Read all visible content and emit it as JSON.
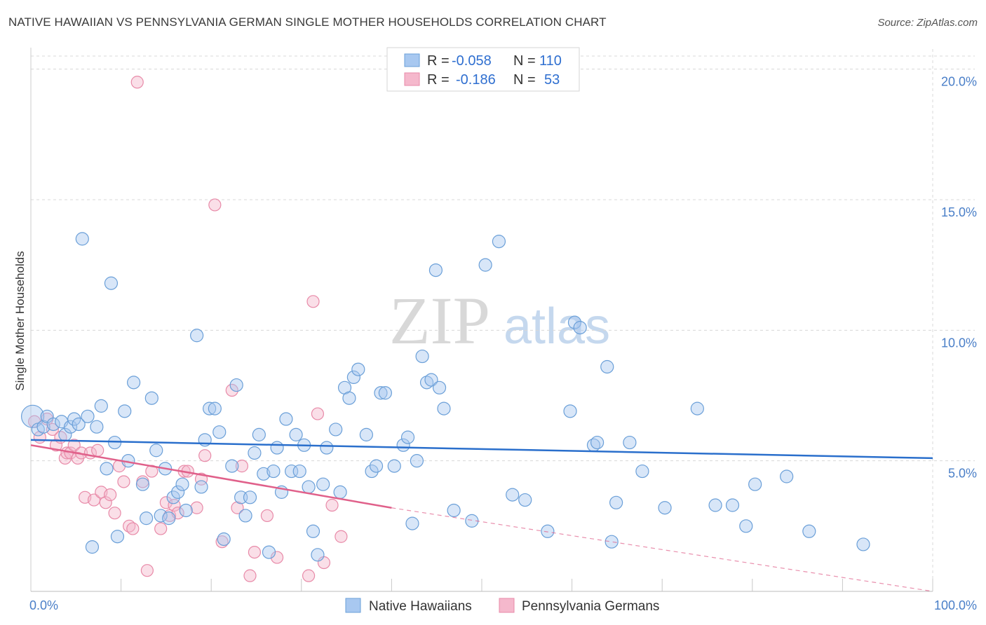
{
  "title": "NATIVE HAWAIIAN VS PENNSYLVANIA GERMAN SINGLE MOTHER HOUSEHOLDS CORRELATION CHART",
  "source": "Source: ZipAtlas.com",
  "watermark": {
    "zip": "ZIP",
    "atlas": "atlas"
  },
  "colors": {
    "blue_fill": "#a8c8f0",
    "blue_stroke": "#6a9fd8",
    "blue_line": "#2a6fcc",
    "pink_fill": "#f5b8cc",
    "pink_stroke": "#e88aa8",
    "pink_line": "#e0608a",
    "grid": "#d8d8d8",
    "tick_text": "#4a7fc8"
  },
  "legend_top": {
    "rows": [
      {
        "r_label": "R =",
        "r_value": "-0.058",
        "n_label": "N =",
        "n_value": "110"
      },
      {
        "r_label": "R =",
        "r_value": "-0.186",
        "n_label": "N =",
        "n_value": "53"
      }
    ]
  },
  "chart_data": {
    "type": "scatter",
    "title": "NATIVE HAWAIIAN VS PENNSYLVANIA GERMAN SINGLE MOTHER HOUSEHOLDS CORRELATION CHART",
    "xlabel": "",
    "ylabel": "Single Mother Households",
    "xlim": [
      0,
      100
    ],
    "ylim": [
      0,
      20.5
    ],
    "x_tick_labels": [
      "0.0%",
      "100.0%"
    ],
    "y_ticks": [
      5,
      10,
      15,
      20
    ],
    "y_tick_labels": [
      "5.0%",
      "10.0%",
      "15.0%",
      "20.0%"
    ],
    "series": [
      {
        "name": "Native Hawaiians",
        "r": -0.058,
        "n": 110,
        "trend": {
          "x0": 0,
          "y0": 5.8,
          "x1": 100,
          "y1": 5.1
        },
        "points": [
          [
            0.2,
            6.7
          ],
          [
            0.8,
            6.2
          ],
          [
            1.4,
            6.3
          ],
          [
            1.8,
            6.7
          ],
          [
            2.5,
            6.4
          ],
          [
            3.4,
            6.5
          ],
          [
            3.8,
            6.0
          ],
          [
            4.4,
            6.3
          ],
          [
            4.8,
            6.6
          ],
          [
            5.3,
            6.4
          ],
          [
            5.7,
            13.5
          ],
          [
            6.3,
            6.7
          ],
          [
            6.8,
            1.7
          ],
          [
            7.3,
            6.3
          ],
          [
            7.8,
            7.1
          ],
          [
            8.4,
            4.7
          ],
          [
            8.9,
            11.8
          ],
          [
            9.3,
            5.7
          ],
          [
            9.6,
            2.1
          ],
          [
            10.4,
            6.9
          ],
          [
            10.8,
            5.0
          ],
          [
            11.4,
            8.0
          ],
          [
            12.4,
            4.1
          ],
          [
            12.8,
            2.8
          ],
          [
            13.4,
            7.4
          ],
          [
            13.9,
            5.4
          ],
          [
            14.4,
            2.9
          ],
          [
            14.9,
            4.7
          ],
          [
            15.3,
            2.8
          ],
          [
            15.8,
            3.6
          ],
          [
            16.3,
            3.8
          ],
          [
            16.8,
            4.1
          ],
          [
            17.2,
            3.1
          ],
          [
            18.4,
            9.8
          ],
          [
            18.9,
            4.0
          ],
          [
            19.3,
            5.8
          ],
          [
            19.8,
            7.0
          ],
          [
            20.4,
            7.0
          ],
          [
            20.9,
            6.1
          ],
          [
            21.4,
            2.0
          ],
          [
            22.3,
            4.8
          ],
          [
            22.8,
            7.9
          ],
          [
            23.3,
            3.6
          ],
          [
            23.8,
            2.9
          ],
          [
            24.3,
            3.6
          ],
          [
            24.8,
            5.3
          ],
          [
            25.3,
            6.0
          ],
          [
            25.8,
            4.5
          ],
          [
            26.4,
            1.5
          ],
          [
            26.9,
            4.6
          ],
          [
            27.3,
            5.5
          ],
          [
            27.8,
            3.8
          ],
          [
            28.3,
            6.6
          ],
          [
            28.9,
            4.6
          ],
          [
            29.4,
            6.0
          ],
          [
            29.8,
            4.6
          ],
          [
            30.3,
            5.6
          ],
          [
            30.8,
            4.0
          ],
          [
            31.3,
            2.3
          ],
          [
            31.8,
            1.4
          ],
          [
            32.4,
            4.1
          ],
          [
            32.8,
            5.5
          ],
          [
            33.8,
            6.2
          ],
          [
            34.3,
            3.8
          ],
          [
            34.8,
            7.8
          ],
          [
            35.3,
            7.4
          ],
          [
            35.8,
            8.2
          ],
          [
            36.3,
            8.5
          ],
          [
            37.2,
            6.0
          ],
          [
            37.8,
            4.6
          ],
          [
            38.3,
            4.8
          ],
          [
            38.8,
            7.6
          ],
          [
            39.3,
            7.6
          ],
          [
            40.3,
            4.8
          ],
          [
            41.3,
            5.6
          ],
          [
            41.8,
            5.9
          ],
          [
            42.3,
            2.6
          ],
          [
            42.8,
            5.0
          ],
          [
            43.4,
            9.0
          ],
          [
            43.9,
            8.0
          ],
          [
            44.4,
            8.1
          ],
          [
            44.9,
            12.3
          ],
          [
            45.3,
            7.8
          ],
          [
            45.8,
            7.0
          ],
          [
            46.9,
            3.1
          ],
          [
            48.9,
            2.7
          ],
          [
            50.4,
            12.5
          ],
          [
            51.9,
            13.4
          ],
          [
            53.4,
            3.7
          ],
          [
            54.8,
            3.5
          ],
          [
            57.3,
            2.3
          ],
          [
            59.8,
            6.9
          ],
          [
            60.3,
            10.3
          ],
          [
            60.9,
            10.1
          ],
          [
            62.4,
            5.6
          ],
          [
            62.8,
            5.7
          ],
          [
            63.9,
            8.6
          ],
          [
            64.4,
            1.9
          ],
          [
            64.9,
            3.4
          ],
          [
            66.4,
            5.7
          ],
          [
            67.8,
            4.6
          ],
          [
            70.3,
            3.2
          ],
          [
            73.9,
            7.0
          ],
          [
            75.9,
            3.3
          ],
          [
            77.8,
            3.3
          ],
          [
            79.3,
            2.5
          ],
          [
            80.3,
            4.1
          ],
          [
            83.8,
            4.4
          ],
          [
            86.3,
            2.3
          ],
          [
            92.3,
            1.8
          ]
        ]
      },
      {
        "name": "Pennsylvania Germans",
        "r": -0.186,
        "n": 53,
        "trend": {
          "x0": 0,
          "y0": 5.6,
          "x1": 40,
          "y1": 3.2
        },
        "trend_dashed": {
          "x0": 40,
          "y0": 3.2,
          "x1": 100,
          "y1": -0.4
        },
        "points": [
          [
            0.4,
            6.5
          ],
          [
            1.0,
            5.9
          ],
          [
            1.8,
            6.6
          ],
          [
            2.4,
            6.2
          ],
          [
            2.8,
            5.6
          ],
          [
            3.3,
            5.9
          ],
          [
            3.8,
            5.1
          ],
          [
            4.0,
            5.3
          ],
          [
            4.4,
            5.3
          ],
          [
            4.8,
            5.6
          ],
          [
            5.2,
            5.1
          ],
          [
            5.6,
            5.3
          ],
          [
            6.0,
            3.6
          ],
          [
            6.6,
            5.3
          ],
          [
            7.0,
            3.5
          ],
          [
            7.4,
            5.4
          ],
          [
            7.8,
            3.8
          ],
          [
            8.3,
            3.4
          ],
          [
            8.8,
            3.7
          ],
          [
            9.3,
            3.0
          ],
          [
            9.8,
            4.8
          ],
          [
            10.3,
            4.2
          ],
          [
            10.9,
            2.5
          ],
          [
            11.3,
            2.4
          ],
          [
            11.8,
            19.5
          ],
          [
            12.4,
            4.2
          ],
          [
            12.9,
            0.8
          ],
          [
            13.4,
            4.6
          ],
          [
            14.4,
            2.4
          ],
          [
            15.0,
            3.4
          ],
          [
            15.4,
            2.9
          ],
          [
            15.9,
            3.3
          ],
          [
            16.3,
            3.0
          ],
          [
            17.0,
            4.6
          ],
          [
            17.4,
            4.6
          ],
          [
            18.4,
            3.2
          ],
          [
            18.9,
            4.3
          ],
          [
            19.3,
            5.2
          ],
          [
            20.4,
            14.8
          ],
          [
            21.2,
            1.9
          ],
          [
            22.3,
            7.7
          ],
          [
            22.9,
            3.2
          ],
          [
            23.4,
            4.8
          ],
          [
            24.3,
            0.6
          ],
          [
            24.8,
            1.5
          ],
          [
            26.2,
            2.9
          ],
          [
            27.3,
            1.3
          ],
          [
            30.8,
            0.6
          ],
          [
            31.3,
            11.1
          ],
          [
            31.8,
            6.8
          ],
          [
            32.5,
            1.1
          ],
          [
            33.4,
            3.3
          ],
          [
            34.4,
            2.1
          ]
        ]
      }
    ]
  },
  "legend_bottom": [
    "Native Hawaiians",
    "Pennsylvania Germans"
  ]
}
